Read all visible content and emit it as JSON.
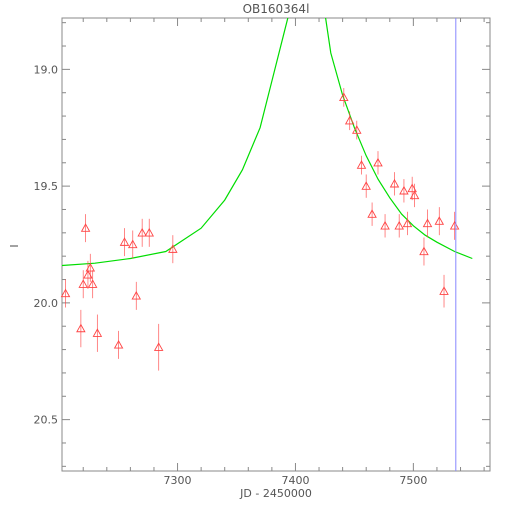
{
  "chart_data": {
    "type": "scatter",
    "title": "OB160364l",
    "xlabel": "JD - 2450000",
    "ylabel": "I",
    "xlim": [
      7202,
      7565
    ],
    "ylim": [
      20.72,
      18.78
    ],
    "y_inverted": true,
    "x_ticks": [
      7300,
      7400,
      7500
    ],
    "y_ticks": [
      19.0,
      19.5,
      20.0,
      20.5
    ],
    "y_tick_labels": [
      "19.0",
      "19.5",
      "20.0",
      "20.5"
    ],
    "grid": false,
    "colors": {
      "points": "#ff4444",
      "model_curve": "#00dd00",
      "vertical_line": "#8888ff",
      "axes": "#888888"
    },
    "vertical_line_x": 7536,
    "model_curve": {
      "label": "",
      "x": [
        7202,
        7230,
        7260,
        7290,
        7320,
        7340,
        7355,
        7370,
        7380,
        7390,
        7395,
        7425,
        7430,
        7440,
        7450,
        7460,
        7470,
        7480,
        7490,
        7500,
        7510,
        7520,
        7535,
        7550
      ],
      "y": [
        19.84,
        19.83,
        19.81,
        19.78,
        19.68,
        19.56,
        19.43,
        19.25,
        19.05,
        18.85,
        18.75,
        18.76,
        18.93,
        19.11,
        19.25,
        19.37,
        19.47,
        19.55,
        19.62,
        19.67,
        19.71,
        19.74,
        19.78,
        19.81
      ]
    },
    "points": {
      "label": "",
      "marker": "triangle",
      "x": [
        7205,
        7218,
        7220,
        7222,
        7224,
        7226,
        7228,
        7232,
        7250,
        7255,
        7262,
        7265,
        7270,
        7276,
        7284,
        7296,
        7441,
        7446,
        7452,
        7456,
        7460,
        7465,
        7470,
        7476,
        7484,
        7488,
        7492,
        7495,
        7499,
        7501,
        7509,
        7512,
        7522,
        7526,
        7535
      ],
      "y": [
        19.96,
        20.11,
        19.92,
        19.68,
        19.88,
        19.85,
        19.92,
        20.13,
        20.18,
        19.74,
        19.75,
        19.97,
        19.7,
        19.7,
        20.19,
        19.77,
        19.12,
        19.22,
        19.26,
        19.41,
        19.5,
        19.62,
        19.4,
        19.67,
        19.49,
        19.67,
        19.52,
        19.66,
        19.51,
        19.54,
        19.78,
        19.66,
        19.65,
        19.95,
        19.67
      ],
      "err": [
        0.06,
        0.08,
        0.06,
        0.06,
        0.06,
        0.06,
        0.06,
        0.08,
        0.06,
        0.06,
        0.06,
        0.06,
        0.06,
        0.06,
        0.1,
        0.06,
        0.04,
        0.04,
        0.04,
        0.04,
        0.05,
        0.05,
        0.05,
        0.05,
        0.05,
        0.05,
        0.05,
        0.05,
        0.05,
        0.05,
        0.06,
        0.06,
        0.06,
        0.07,
        0.06
      ]
    }
  }
}
